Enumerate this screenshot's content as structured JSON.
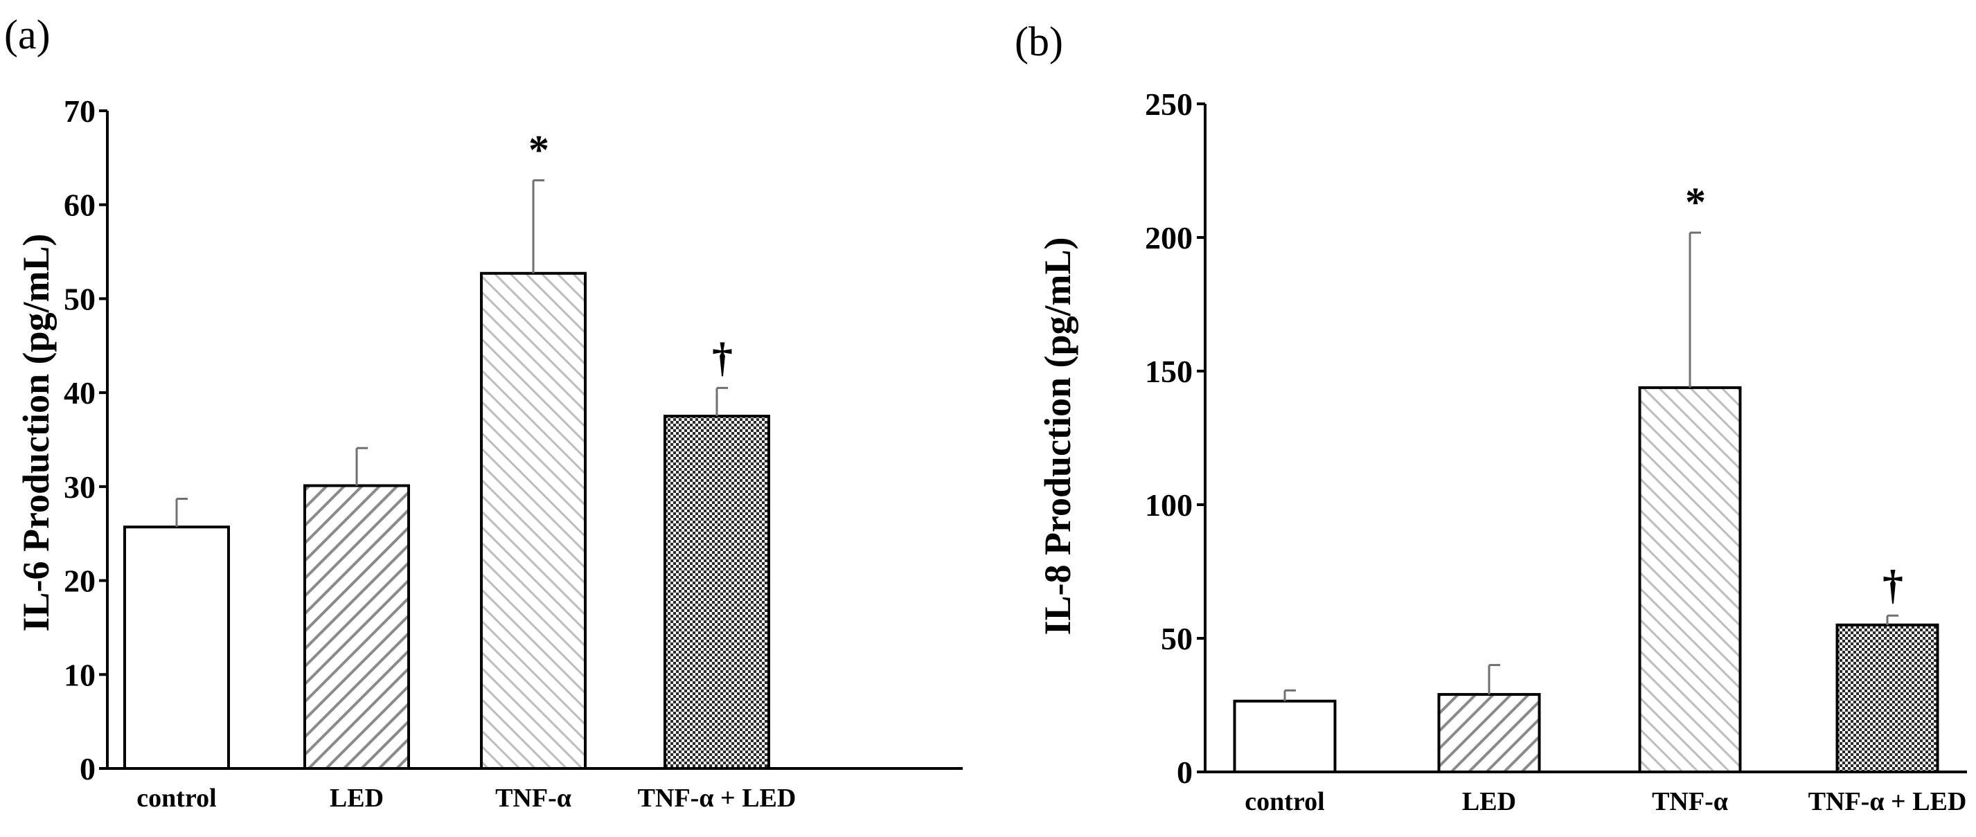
{
  "chart_data": [
    {
      "panel_label": "(a)",
      "type": "bar",
      "ylabel": "IL-6 Production (pg/mL)",
      "xlabel": "",
      "ylim": [
        0,
        70
      ],
      "yticks": [
        0,
        10,
        20,
        30,
        40,
        50,
        60,
        70
      ],
      "ytick_labels": [
        "0",
        "10",
        "20",
        "30",
        "40",
        "50",
        "60",
        "70"
      ],
      "categories": [
        "control",
        "LED",
        "TNF-α",
        "TNF-α + LED"
      ],
      "values": [
        25.7,
        30.1,
        52.7,
        37.5
      ],
      "errors": [
        3.0,
        4.0,
        9.9,
        3.0
      ],
      "annotations": [
        "",
        "",
        "*",
        "†"
      ],
      "patterns": [
        "solid-white",
        "diag-dark",
        "diag-light",
        "checker"
      ]
    },
    {
      "panel_label": "(b)",
      "type": "bar",
      "ylabel": "IL-8 Production (pg/mL)",
      "xlabel": "",
      "ylim": [
        0,
        250
      ],
      "yticks": [
        0,
        50,
        100,
        150,
        200,
        250
      ],
      "ytick_labels": [
        "0",
        "50",
        "100",
        "150",
        "200",
        "250"
      ],
      "categories": [
        "control",
        "LED",
        "TNF-α",
        "TNF-α + LED"
      ],
      "values": [
        26.5,
        29.0,
        143.8,
        55.0
      ],
      "errors": [
        4.0,
        11.0,
        58.0,
        3.5
      ],
      "annotations": [
        "",
        "",
        "*",
        "†"
      ],
      "patterns": [
        "solid-white",
        "diag-dark",
        "diag-light",
        "checker"
      ]
    }
  ]
}
